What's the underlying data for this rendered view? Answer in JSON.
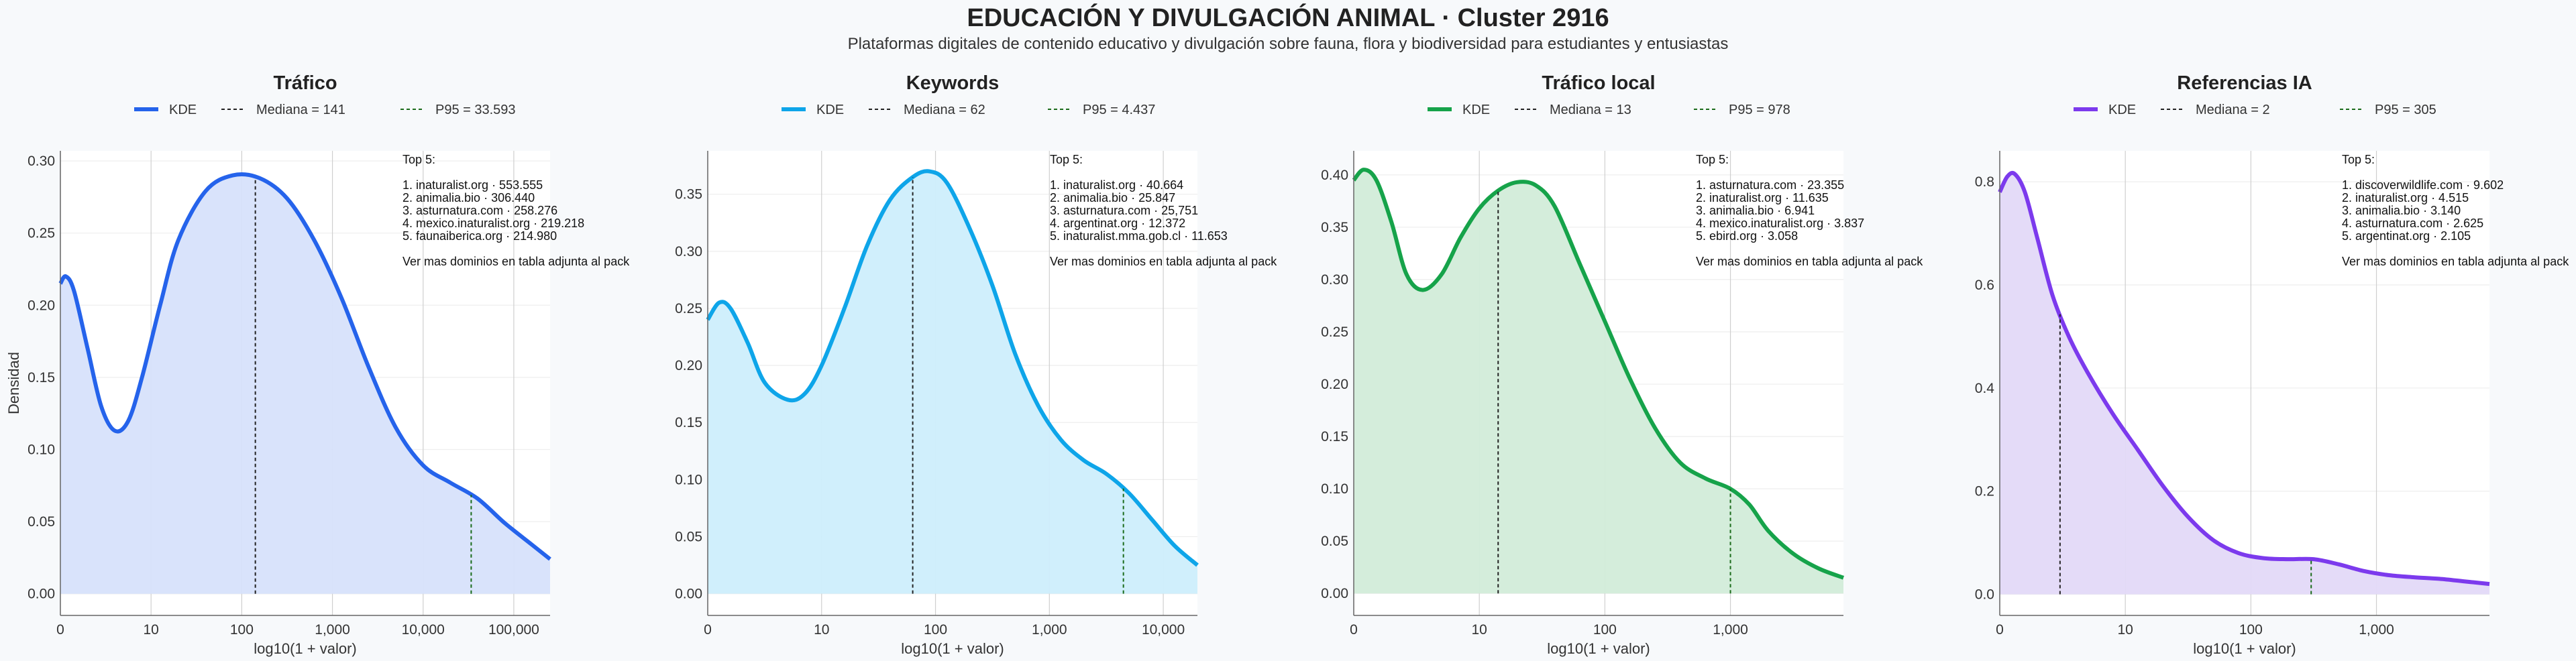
{
  "title": "EDUCACIÓN Y DIVULGACIÓN ANIMAL · Cluster 2916",
  "subtitle": "Plataformas digitales de contenido educativo y divulgación sobre fauna, flora y biodiversidad para estudiantes y entusiastas",
  "chart_data": [
    {
      "type": "area",
      "title": "Tráfico",
      "color": "#2563eb",
      "fill": "#d7e1fb",
      "xlabel": "log10(1 + valor)",
      "ylabel": "Densidad",
      "xlim": [
        0,
        5.4
      ],
      "ylim": [
        -0.015,
        0.307
      ],
      "xticks": [
        0,
        1,
        2,
        3,
        4,
        5
      ],
      "xtick_labels": [
        "0",
        "10",
        "100",
        "1,000",
        "10,000",
        "100,000"
      ],
      "yticks": [
        0,
        0.05,
        0.1,
        0.15,
        0.2,
        0.25,
        0.3
      ],
      "ytick_labels": [
        "0.00",
        "0.05",
        "0.10",
        "0.15",
        "0.20",
        "0.25",
        "0.30"
      ],
      "legend": [
        "KDE",
        "Mediana = 141",
        "P95 = 33.593"
      ],
      "median_x": 2.15,
      "p95_x": 4.53,
      "curve": [
        [
          0,
          0.215
        ],
        [
          0.06,
          0.22
        ],
        [
          0.15,
          0.21
        ],
        [
          0.3,
          0.17
        ],
        [
          0.45,
          0.13
        ],
        [
          0.6,
          0.113
        ],
        [
          0.75,
          0.12
        ],
        [
          0.9,
          0.15
        ],
        [
          1.1,
          0.2
        ],
        [
          1.3,
          0.245
        ],
        [
          1.6,
          0.279
        ],
        [
          1.9,
          0.29
        ],
        [
          2.2,
          0.288
        ],
        [
          2.5,
          0.274
        ],
        [
          2.8,
          0.245
        ],
        [
          3.1,
          0.205
        ],
        [
          3.4,
          0.157
        ],
        [
          3.7,
          0.115
        ],
        [
          4.0,
          0.089
        ],
        [
          4.3,
          0.077
        ],
        [
          4.6,
          0.066
        ],
        [
          4.9,
          0.049
        ],
        [
          5.2,
          0.034
        ],
        [
          5.4,
          0.024
        ]
      ],
      "top5_header": "Top 5:",
      "top5": [
        "1. inaturalist.org · 553.555",
        "2. animalia.bio · 306.440",
        "3. asturnatura.com · 258.276",
        "4. mexico.inaturalist.org · 219.218",
        "5. faunaiberica.org · 214.980"
      ],
      "top5_footer": "Ver mas dominios en tabla adjunta al pack"
    },
    {
      "type": "area",
      "title": "Keywords",
      "color": "#0ea5e9",
      "fill": "#cdeefc",
      "xlabel": "log10(1 + valor)",
      "ylabel": "",
      "xlim": [
        0,
        4.3
      ],
      "ylim": [
        -0.019,
        0.388
      ],
      "xticks": [
        0,
        1,
        2,
        3,
        4
      ],
      "xtick_labels": [
        "0",
        "10",
        "100",
        "1,000",
        "10,000"
      ],
      "yticks": [
        0,
        0.05,
        0.1,
        0.15,
        0.2,
        0.25,
        0.3,
        0.35
      ],
      "ytick_labels": [
        "0.00",
        "0.05",
        "0.10",
        "0.15",
        "0.20",
        "0.25",
        "0.30",
        "0.35"
      ],
      "legend": [
        "KDE",
        "Mediana = 62",
        "P95 = 4.437"
      ],
      "median_x": 1.8,
      "p95_x": 3.65,
      "curve": [
        [
          0,
          0.24
        ],
        [
          0.1,
          0.255
        ],
        [
          0.2,
          0.25
        ],
        [
          0.35,
          0.22
        ],
        [
          0.5,
          0.185
        ],
        [
          0.7,
          0.17
        ],
        [
          0.85,
          0.175
        ],
        [
          1.0,
          0.2
        ],
        [
          1.2,
          0.25
        ],
        [
          1.4,
          0.305
        ],
        [
          1.6,
          0.345
        ],
        [
          1.8,
          0.365
        ],
        [
          1.95,
          0.37
        ],
        [
          2.1,
          0.36
        ],
        [
          2.3,
          0.32
        ],
        [
          2.5,
          0.27
        ],
        [
          2.7,
          0.21
        ],
        [
          2.9,
          0.165
        ],
        [
          3.1,
          0.135
        ],
        [
          3.3,
          0.117
        ],
        [
          3.5,
          0.105
        ],
        [
          3.7,
          0.088
        ],
        [
          3.9,
          0.065
        ],
        [
          4.1,
          0.042
        ],
        [
          4.3,
          0.025
        ]
      ],
      "top5_header": "Top 5:",
      "top5": [
        "1. inaturalist.org · 40.664",
        "2. animalia.bio · 25.847",
        "3. asturnatura.com · 25,751",
        "4. argentinat.org · 12.372",
        "5. inaturalist.mma.gob.cl · 11.653"
      ],
      "top5_footer": "Ver mas dominios en tabla adjunta al pack"
    },
    {
      "type": "area",
      "title": "Tráfico local",
      "color": "#16a34a",
      "fill": "#d2ecd9",
      "xlabel": "log10(1 + valor)",
      "ylabel": "",
      "xlim": [
        0,
        3.9
      ],
      "ylim": [
        -0.021,
        0.423
      ],
      "xticks": [
        0,
        1,
        2,
        3
      ],
      "xtick_labels": [
        "0",
        "10",
        "100",
        "1,000"
      ],
      "yticks": [
        0,
        0.05,
        0.1,
        0.15,
        0.2,
        0.25,
        0.3,
        0.35,
        0.4
      ],
      "ytick_labels": [
        "0.00",
        "0.05",
        "0.10",
        "0.15",
        "0.20",
        "0.25",
        "0.30",
        "0.35",
        "0.40"
      ],
      "legend": [
        "KDE",
        "Mediana = 13",
        "P95 = 978"
      ],
      "median_x": 1.15,
      "p95_x": 3.0,
      "curve": [
        [
          0,
          0.395
        ],
        [
          0.08,
          0.405
        ],
        [
          0.18,
          0.395
        ],
        [
          0.3,
          0.355
        ],
        [
          0.42,
          0.305
        ],
        [
          0.55,
          0.29
        ],
        [
          0.7,
          0.305
        ],
        [
          0.85,
          0.34
        ],
        [
          1.0,
          0.368
        ],
        [
          1.15,
          0.385
        ],
        [
          1.3,
          0.393
        ],
        [
          1.45,
          0.39
        ],
        [
          1.6,
          0.37
        ],
        [
          1.8,
          0.315
        ],
        [
          2.0,
          0.26
        ],
        [
          2.2,
          0.205
        ],
        [
          2.4,
          0.158
        ],
        [
          2.6,
          0.125
        ],
        [
          2.8,
          0.11
        ],
        [
          3.0,
          0.1
        ],
        [
          3.15,
          0.085
        ],
        [
          3.3,
          0.06
        ],
        [
          3.5,
          0.038
        ],
        [
          3.7,
          0.024
        ],
        [
          3.9,
          0.015
        ]
      ],
      "top5_header": "Top 5:",
      "top5": [
        "1. asturnatura.com · 23.355",
        "2. inaturalist.org · 11.635",
        "3. animalia.bio · 6.941",
        "4. mexico.inaturalist.org · 3.837",
        "5. ebird.org · 3.058"
      ],
      "top5_footer": "Ver mas dominios en tabla adjunta al pack"
    },
    {
      "type": "area",
      "title": "Referencias IA",
      "color": "#7c3aed",
      "fill": "#e3d9f8",
      "xlabel": "log10(1 + valor)",
      "ylabel": "",
      "xlim": [
        0,
        3.9
      ],
      "ylim": [
        -0.041,
        0.86
      ],
      "xticks": [
        0,
        1,
        2,
        3
      ],
      "xtick_labels": [
        "0",
        "10",
        "100",
        "1,000"
      ],
      "yticks": [
        0,
        0.2,
        0.4,
        0.6,
        0.8
      ],
      "ytick_labels": [
        "0.0",
        "0.2",
        "0.4",
        "0.6",
        "0.8"
      ],
      "legend": [
        "KDE",
        "Mediana = 2",
        "P95 = 305"
      ],
      "median_x": 0.48,
      "p95_x": 2.48,
      "curve": [
        [
          0,
          0.78
        ],
        [
          0.06,
          0.81
        ],
        [
          0.12,
          0.815
        ],
        [
          0.2,
          0.78
        ],
        [
          0.3,
          0.69
        ],
        [
          0.42,
          0.58
        ],
        [
          0.55,
          0.5
        ],
        [
          0.7,
          0.43
        ],
        [
          0.9,
          0.35
        ],
        [
          1.1,
          0.28
        ],
        [
          1.3,
          0.21
        ],
        [
          1.5,
          0.15
        ],
        [
          1.7,
          0.105
        ],
        [
          1.9,
          0.08
        ],
        [
          2.1,
          0.07
        ],
        [
          2.3,
          0.068
        ],
        [
          2.5,
          0.068
        ],
        [
          2.7,
          0.058
        ],
        [
          2.9,
          0.045
        ],
        [
          3.1,
          0.037
        ],
        [
          3.3,
          0.033
        ],
        [
          3.5,
          0.03
        ],
        [
          3.7,
          0.025
        ],
        [
          3.9,
          0.02
        ]
      ],
      "top5_header": "Top 5:",
      "top5": [
        "1. discoverwildlife.com · 9.602",
        "2. inaturalist.org · 4.515",
        "3. animalia.bio · 3.140",
        "4. asturnatura.com · 2.625",
        "5. argentinat.org · 2.105"
      ],
      "top5_footer": "Ver mas dominios en tabla adjunta al pack"
    }
  ]
}
